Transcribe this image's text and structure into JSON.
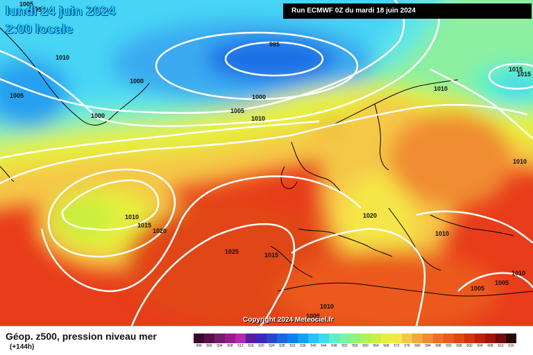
{
  "header": {
    "date_label": "lundi 24 juin 2024",
    "time_label": "2:00 locale",
    "run_label": "Run ECMWF 0Z du mardi 18 juin 2024"
  },
  "copyright": "Copyright 2024 Meteociel.fr",
  "footer": {
    "title": "Géop. z500, pression niveau mer",
    "subtitle": "(+144h)"
  },
  "legend": {
    "labels": [
      "496",
      "500",
      "504",
      "508",
      "512",
      "516",
      "520",
      "524",
      "528",
      "532",
      "536",
      "540",
      "544",
      "548",
      "552",
      "556",
      "560",
      "564",
      "568",
      "572",
      "576",
      "580",
      "584",
      "588",
      "592",
      "596",
      "600",
      "604",
      "608",
      "612",
      "616"
    ],
    "colors": [
      "#3a0a2e",
      "#5a0f4a",
      "#781a6e",
      "#961e8c",
      "#b428b4",
      "#5a1ea0",
      "#3c28be",
      "#2846d2",
      "#1e64e6",
      "#0a82f0",
      "#14a0f5",
      "#28c3fa",
      "#3cdcf0",
      "#5af0c8",
      "#78f5a0",
      "#8cf57a",
      "#aaf55a",
      "#c8f03c",
      "#e6f03c",
      "#f5e646",
      "#f5c846",
      "#f0aa3c",
      "#f08c32",
      "#f06e28",
      "#eb5a1e",
      "#e14614",
      "#d2320a",
      "#be1e0a",
      "#a0140a",
      "#780a0a",
      "#2a0505"
    ]
  },
  "isobars": [
    {
      "text": "1005"
    },
    {
      "text": "1005"
    },
    {
      "text": "1010"
    },
    {
      "text": "1005"
    },
    {
      "text": "995"
    },
    {
      "text": "1000"
    },
    {
      "text": "1000"
    },
    {
      "text": "1000"
    },
    {
      "text": "1005"
    },
    {
      "text": "1010"
    },
    {
      "text": "1010"
    },
    {
      "text": "1015"
    },
    {
      "text": "1015"
    },
    {
      "text": "1010"
    },
    {
      "text": "1010"
    },
    {
      "text": "1015"
    },
    {
      "text": "1020"
    },
    {
      "text": "1025"
    },
    {
      "text": "1015"
    },
    {
      "text": "1020"
    },
    {
      "text": "1010"
    },
    {
      "text": "1010"
    },
    {
      "text": "1005"
    },
    {
      "text": "1005"
    },
    {
      "text": "1010"
    },
    {
      "text": "1005"
    }
  ],
  "colors": {
    "isobar_line": "#ffffff",
    "coastline": "#000000",
    "title_text": "#19d3f5"
  }
}
